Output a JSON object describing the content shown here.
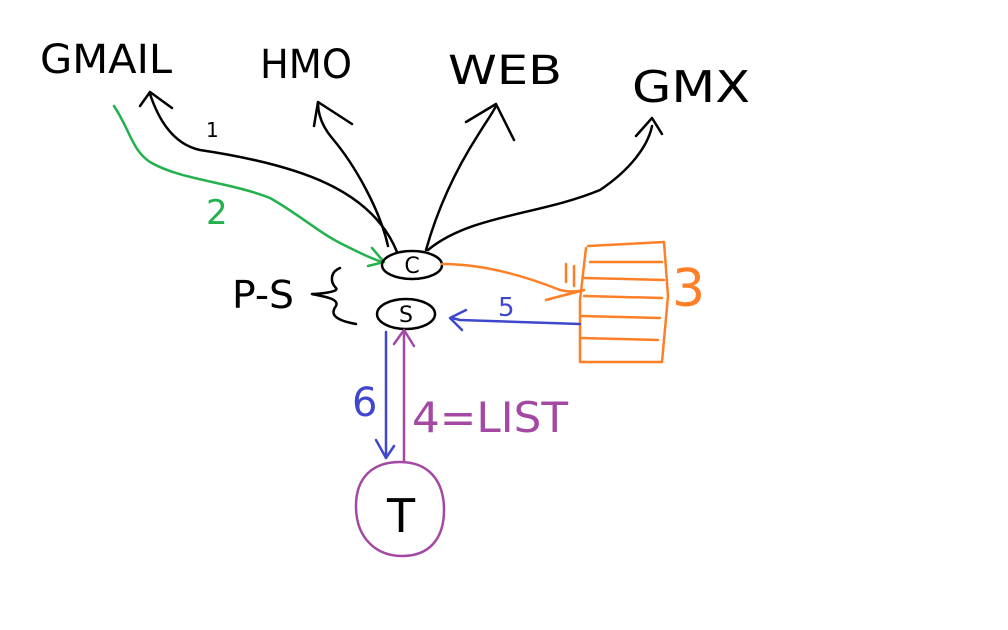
{
  "colors": {
    "black": "#000000",
    "green": "#22b14c",
    "orange": "#ff7f27",
    "blue": "#3f48cc",
    "purple": "#a349a4"
  },
  "targets": {
    "gmail": "GMAIL",
    "hmo": "HMO",
    "web": "WEB",
    "gmx": "GMX"
  },
  "nodes": {
    "client": "C",
    "server": "S",
    "terminal": "T",
    "ps_label": "P-S"
  },
  "steps": {
    "step1": "1",
    "step2": "2",
    "step3": "3",
    "step4": "4=LIST",
    "step5": "5",
    "step6": "6"
  }
}
